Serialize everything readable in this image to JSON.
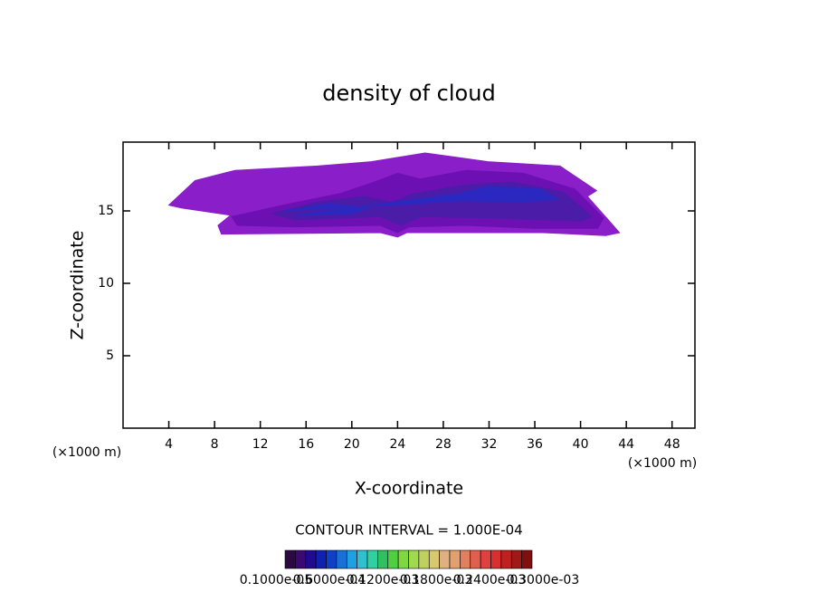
{
  "chart_data": {
    "type": "contour",
    "title": "density of cloud",
    "x_label": "X-coordinate",
    "y_label": "Z-coordinate",
    "x_unit_left": "(×1000 m)",
    "x_unit_right": "(×1000 m)",
    "note": "CONTOUR INTERVAL = 1.000E-04",
    "xlim": [
      0,
      50
    ],
    "ylim": [
      0,
      19.75
    ],
    "xticks": [
      4,
      8,
      12,
      16,
      20,
      24,
      28,
      32,
      36,
      40,
      44,
      48
    ],
    "yticks": [
      5,
      10,
      15
    ],
    "regions": [
      {
        "color": "#8a1ec8",
        "x": [
          4.0,
          6.3,
          9.8,
          17.0,
          21.7,
          26.4,
          31.9,
          38.2,
          41.4,
          40.6,
          42.4,
          43.4,
          42.2,
          36.7,
          24.8,
          24.0,
          22.5,
          8.6,
          8.3,
          9.4,
          5.1
        ],
        "z": [
          15.4,
          17.1,
          17.8,
          18.1,
          18.4,
          19.0,
          18.4,
          18.1,
          16.4,
          16.0,
          14.4,
          13.5,
          13.3,
          13.5,
          13.5,
          13.2,
          13.5,
          13.4,
          14.0,
          14.7,
          15.2
        ]
      },
      {
        "color": "#6c10b4",
        "x": [
          9.5,
          14.0,
          19.0,
          22.0,
          24.0,
          26.0,
          30.0,
          35.0,
          39.5,
          42.0,
          41.5,
          36.0,
          30.0,
          25.0,
          24.0,
          22.5,
          15.0,
          10.0
        ],
        "z": [
          14.6,
          15.4,
          16.2,
          17.0,
          17.6,
          17.2,
          17.8,
          17.6,
          16.5,
          14.5,
          13.8,
          13.8,
          14.0,
          13.9,
          13.5,
          14.0,
          13.9,
          14.0
        ]
      },
      {
        "color": "#4a1ca8",
        "x": [
          13.0,
          17.0,
          21.0,
          23.5,
          25.5,
          30.0,
          34.0,
          38.5,
          41.0,
          40.0,
          33.0,
          26.0,
          24.3,
          22.5,
          15.0
        ],
        "z": [
          14.8,
          15.6,
          16.0,
          15.6,
          16.2,
          16.8,
          17.0,
          16.3,
          14.6,
          14.3,
          14.5,
          14.6,
          14.0,
          14.6,
          14.4
        ]
      },
      {
        "color": "#2a28c0",
        "x": [
          14.0,
          18.0,
          21.5,
          20.0,
          15.0,
          29.5,
          32.0,
          36.5,
          38.0,
          35.0,
          30.0
        ],
        "z": [
          15.0,
          15.5,
          15.2,
          14.8,
          14.7,
          16.2,
          16.7,
          16.5,
          15.8,
          15.6,
          15.7
        ]
      }
    ],
    "colorbar_colors": [
      "#2a0a40",
      "#3a0a70",
      "#200a90",
      "#1020b0",
      "#1040c8",
      "#1870d8",
      "#20a0e0",
      "#30c0d0",
      "#30d0a0",
      "#30c060",
      "#50d040",
      "#80d840",
      "#a0d850",
      "#c0d060",
      "#d8c870",
      "#e0b080",
      "#e0a070",
      "#e08060",
      "#e06050",
      "#e04040",
      "#d83030",
      "#c02020",
      "#a01818",
      "#801010"
    ],
    "colorbar_labels": [
      "0.1000e-05",
      "0.6000e-04",
      "0.1200e-03",
      "0.1800e-03",
      "0.2400e-03",
      "0.3000e-03"
    ]
  }
}
